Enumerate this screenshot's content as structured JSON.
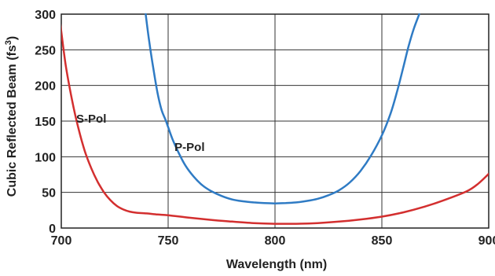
{
  "chart_data": {
    "type": "line",
    "title": "",
    "xlabel": "Wavelength (nm)",
    "ylabel": "Cubic Reflected Beam (fs",
    "ylabel_sup": "3",
    "ylabel_close": ")",
    "xlim": [
      700,
      900
    ],
    "ylim": [
      0,
      300
    ],
    "xticks": [
      700,
      750,
      800,
      850,
      900
    ],
    "xtick_labels": [
      "700",
      "750",
      "800",
      "850",
      "900"
    ],
    "yticks": [
      0,
      50,
      100,
      150,
      200,
      250,
      300
    ],
    "ytick_labels": [
      "0",
      "50",
      "100",
      "150",
      "200",
      "250",
      "300"
    ],
    "grid": true,
    "series": [
      {
        "name": "S-Pol",
        "color": "#d32f2f",
        "points": [
          [
            699,
            300
          ],
          [
            702,
            230
          ],
          [
            705,
            180
          ],
          [
            708,
            140
          ],
          [
            711,
            108
          ],
          [
            714,
            84
          ],
          [
            717,
            65
          ],
          [
            720,
            50
          ],
          [
            723,
            39
          ],
          [
            726,
            31
          ],
          [
            729,
            26
          ],
          [
            732,
            23
          ],
          [
            735,
            21.5
          ],
          [
            740,
            20.5
          ],
          [
            745,
            19
          ],
          [
            750,
            18
          ],
          [
            760,
            14.5
          ],
          [
            770,
            11.5
          ],
          [
            780,
            9
          ],
          [
            790,
            7
          ],
          [
            800,
            6
          ],
          [
            810,
            6
          ],
          [
            820,
            7
          ],
          [
            830,
            9
          ],
          [
            840,
            12
          ],
          [
            850,
            16
          ],
          [
            860,
            22
          ],
          [
            870,
            30
          ],
          [
            880,
            40
          ],
          [
            890,
            52
          ],
          [
            895,
            62
          ],
          [
            900,
            76
          ]
        ]
      },
      {
        "name": "P-Pol",
        "color": "#2f7bc4",
        "points": [
          [
            739.5,
            300
          ],
          [
            741,
            265
          ],
          [
            743,
            225
          ],
          [
            745,
            190
          ],
          [
            747,
            165
          ],
          [
            749,
            150
          ],
          [
            752,
            125
          ],
          [
            755,
            105
          ],
          [
            758,
            88
          ],
          [
            762,
            72
          ],
          [
            766,
            60
          ],
          [
            770,
            52
          ],
          [
            775,
            45
          ],
          [
            780,
            40
          ],
          [
            785,
            37.5
          ],
          [
            790,
            36
          ],
          [
            795,
            35
          ],
          [
            800,
            34.5
          ],
          [
            805,
            35
          ],
          [
            810,
            36
          ],
          [
            815,
            38
          ],
          [
            820,
            41
          ],
          [
            825,
            46
          ],
          [
            830,
            53
          ],
          [
            835,
            64
          ],
          [
            840,
            80
          ],
          [
            845,
            102
          ],
          [
            850,
            130
          ],
          [
            854,
            160
          ],
          [
            857,
            190
          ],
          [
            860,
            225
          ],
          [
            862.5,
            255
          ],
          [
            865,
            280
          ],
          [
            867.5,
            300
          ]
        ]
      }
    ],
    "annotations": [
      {
        "text": "S-Pol",
        "x": 707,
        "y": 148,
        "series": 0
      },
      {
        "text": "P-Pol",
        "x": 753,
        "y": 108,
        "series": 1
      }
    ]
  }
}
